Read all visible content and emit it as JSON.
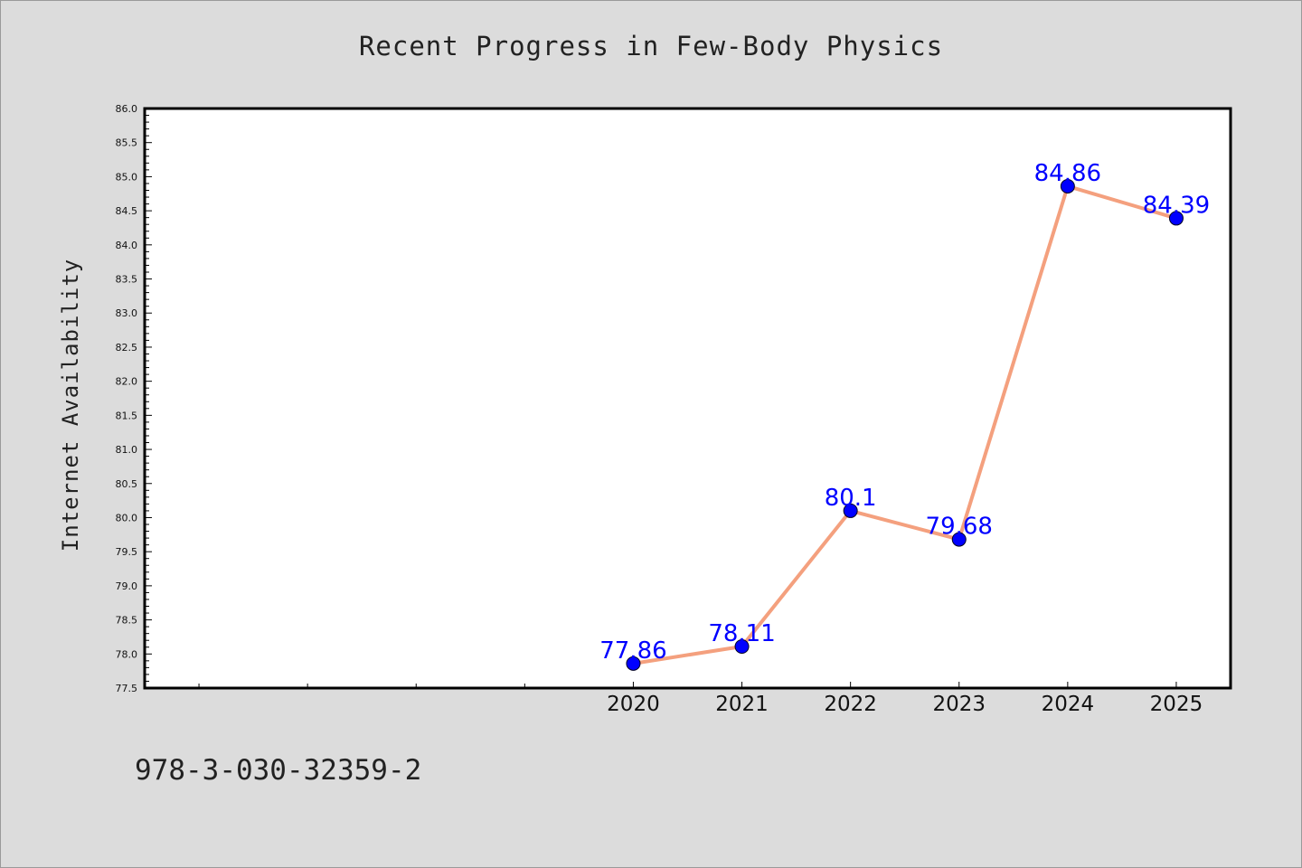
{
  "chart_data": {
    "type": "line",
    "title": "Recent Progress in Few-Body Physics",
    "xlabel": "",
    "ylabel": "Internet Availability",
    "x": [
      2020,
      2021,
      2022,
      2023,
      2024,
      2025
    ],
    "x_tick_labels": [
      "2020",
      "2021",
      "2022",
      "2023",
      "2024",
      "2025"
    ],
    "x_minor_ticks": [
      2016,
      2017,
      2018,
      2019
    ],
    "xlim": [
      2015.5,
      2025.5
    ],
    "ylim": [
      77.5,
      86.0
    ],
    "y_major_step": 0.5,
    "y_minor_step": 0.1,
    "series": [
      {
        "values": [
          77.86,
          78.11,
          80.1,
          79.68,
          84.86,
          84.39
        ],
        "data_labels": [
          "77.86",
          "78.11",
          "80.1",
          "79.68",
          "84.86",
          "84.39"
        ],
        "line_color": "#f4a07e",
        "marker_color": "#0000ff"
      }
    ],
    "grid": false,
    "legend": "none"
  },
  "footer": {
    "text": "978-3-030-32359-2"
  }
}
